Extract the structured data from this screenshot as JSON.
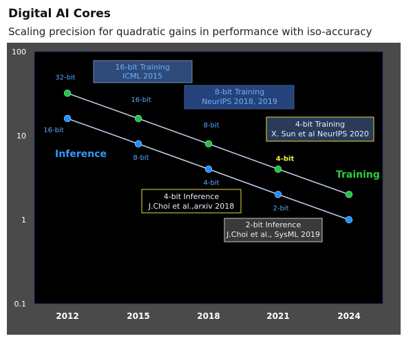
{
  "header": {
    "title": "Digital AI Cores",
    "subtitle": "Scaling precision for quadratic gains in performance with iso-accuracy"
  },
  "colors": {
    "frame": "#4a4a4a",
    "plot_bg": "#000000",
    "line": "#b9cfe6",
    "training_marker": "#22c24a",
    "inference_marker": "#1e90ff",
    "training_label": "#2ecc40",
    "inference_label": "#3399ff",
    "point_label": "#5aa9ff",
    "yellow_label": "#f2f24a"
  },
  "chart_data": {
    "type": "line",
    "yscale": "log",
    "ylim": [
      0.1,
      100
    ],
    "yticks": [
      {
        "value": 100,
        "label": "100"
      },
      {
        "value": 10,
        "label": "10"
      },
      {
        "value": 1,
        "label": "1"
      },
      {
        "value": 0.1,
        "label": "0.1"
      }
    ],
    "categories": [
      "2012",
      "2015",
      "2018",
      "2021",
      "2024"
    ],
    "series": [
      {
        "name": "Training",
        "values": [
          32,
          16,
          8,
          4,
          2
        ],
        "point_labels": [
          "32-bit",
          "16-bit",
          "8-bit",
          "4-bit",
          ""
        ]
      },
      {
        "name": "Inference",
        "values": [
          16,
          8,
          4,
          2,
          1
        ],
        "point_labels": [
          "16-bit",
          "8-bit",
          "4-bit",
          "2-bit",
          ""
        ]
      }
    ],
    "annotations": [
      {
        "id": "ann-16bit-training",
        "lines": [
          "16-bit Training",
          "ICML 2015"
        ]
      },
      {
        "id": "ann-8bit-training",
        "lines": [
          "8-bit Training",
          "NeurIPS 2018, 2019"
        ]
      },
      {
        "id": "ann-4bit-training",
        "lines": [
          "4-bit Training",
          "X. Sun et al NeurIPS 2020"
        ]
      },
      {
        "id": "ann-4bit-inference",
        "lines": [
          "4-bit Inference",
          "J.Choi et al.,arxiv 2018"
        ]
      },
      {
        "id": "ann-2bit-inference",
        "lines": [
          "2-bit Inference",
          "J.Choi et al., SysML 2019"
        ]
      }
    ]
  }
}
